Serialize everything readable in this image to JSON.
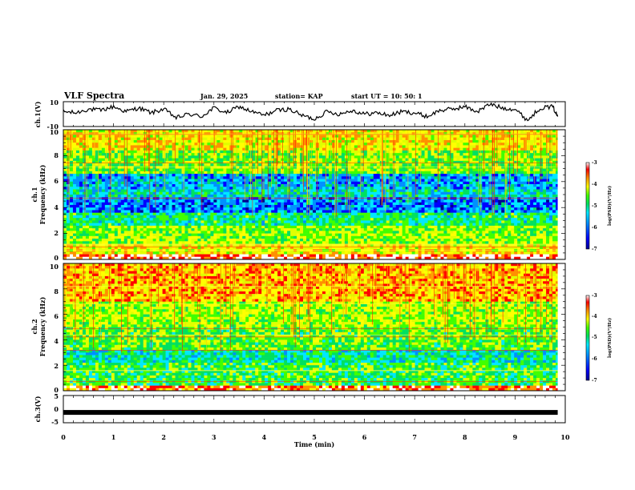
{
  "header": {
    "title": "VLF Spectra",
    "date": "Jan. 29, 2025",
    "station": "station= KAP",
    "start": "start  UT =   10: 50: 1"
  },
  "colors": {
    "spectrum": [
      "#000090",
      "#0000ff",
      "#0090ff",
      "#00e8ff",
      "#00e060",
      "#40ff00",
      "#e0ff00",
      "#ffff00",
      "#ff9000",
      "#ff0000",
      "#ffffff"
    ]
  },
  "chart_data": [
    {
      "type": "line",
      "name": "ch1-waveform",
      "ylabel": "ch.1(V)",
      "xlim": [
        0,
        10
      ],
      "ylim": [
        -10,
        10
      ],
      "yticks": [
        "10",
        "-10"
      ],
      "x": [
        0,
        0.25,
        0.5,
        0.75,
        1.0,
        1.25,
        1.5,
        1.75,
        2.0,
        2.25,
        2.5,
        2.75,
        3.0,
        3.25,
        3.5,
        3.75,
        4.0,
        4.25,
        4.5,
        4.75,
        5.0,
        5.25,
        5.5,
        5.75,
        6.0,
        6.25,
        6.5,
        6.75,
        7.0,
        7.25,
        7.5,
        7.75,
        8.0,
        8.25,
        8.5,
        8.75,
        9.0,
        9.25,
        9.5,
        9.75,
        9.85
      ],
      "y": [
        2,
        1,
        4,
        3,
        6,
        2,
        5,
        1,
        4,
        -3,
        0,
        -2,
        5,
        1,
        6,
        2,
        -1,
        3,
        4,
        -1,
        -4,
        2,
        0,
        3,
        0,
        1,
        -1,
        2,
        1,
        -2,
        3,
        4,
        6,
        2,
        8,
        5,
        4,
        -5,
        5,
        6,
        -2
      ]
    },
    {
      "type": "heatmap",
      "name": "ch1-spectrogram",
      "ylabel": "ch.1\nFrequency (kHz)",
      "xlim": [
        0,
        10
      ],
      "ylim": [
        0,
        10
      ],
      "yticks": [
        "0",
        "2",
        "4",
        "6",
        "8",
        "10"
      ],
      "colorbar": {
        "range": [
          -7,
          -3
        ],
        "ticks": [
          "-3",
          "-4",
          "-5",
          "-6",
          "-7"
        ],
        "label": "log(PSD)(V²/Hz)"
      },
      "bands_khz": [
        {
          "from": 0,
          "to": 0.4,
          "value": -3.3
        },
        {
          "from": 0.4,
          "to": 1.2,
          "value": -4.3
        },
        {
          "from": 1.2,
          "to": 2.6,
          "value": -4.8
        },
        {
          "from": 2.6,
          "to": 3.6,
          "value": -5.4
        },
        {
          "from": 3.6,
          "to": 4.8,
          "value": -6.2
        },
        {
          "from": 4.8,
          "to": 5.5,
          "value": -5.7
        },
        {
          "from": 5.5,
          "to": 6.6,
          "value": -6.0
        },
        {
          "from": 6.6,
          "to": 8.5,
          "value": -4.9
        },
        {
          "from": 8.5,
          "to": 10,
          "value": -4.3
        }
      ]
    },
    {
      "type": "heatmap",
      "name": "ch2-spectrogram",
      "ylabel": "ch.2\nFrequency (kHz)",
      "xlim": [
        0,
        10
      ],
      "ylim": [
        0,
        10
      ],
      "yticks": [
        "0",
        "2",
        "4",
        "6",
        "8",
        "10"
      ],
      "colorbar": {
        "range": [
          -7,
          -3
        ],
        "ticks": [
          "-3",
          "-4",
          "-5",
          "-6",
          "-7"
        ],
        "label": "log(PSD)(V²/Hz)"
      },
      "bands_khz": [
        {
          "from": 0,
          "to": 0.5,
          "value": -3.6
        },
        {
          "from": 0.5,
          "to": 2.2,
          "value": -5.2
        },
        {
          "from": 2.2,
          "to": 3.3,
          "value": -5.6
        },
        {
          "from": 3.3,
          "to": 5.0,
          "value": -5.0
        },
        {
          "from": 5.0,
          "to": 7.0,
          "value": -4.7
        },
        {
          "from": 7.0,
          "to": 10,
          "value": -4.0
        }
      ]
    },
    {
      "type": "line",
      "name": "ch3-waveform",
      "ylabel": "ch.3(V)",
      "xlabel": "Time  (min)",
      "xlim": [
        0,
        10
      ],
      "ylim": [
        -5,
        5
      ],
      "yticks": [
        "5",
        "0",
        "-5"
      ],
      "xticks": [
        "0",
        "1",
        "2",
        "3",
        "4",
        "5",
        "6",
        "7",
        "8",
        "9",
        "10"
      ],
      "x": [
        0,
        9.85
      ],
      "y": [
        -1.2,
        -1.2
      ]
    }
  ]
}
